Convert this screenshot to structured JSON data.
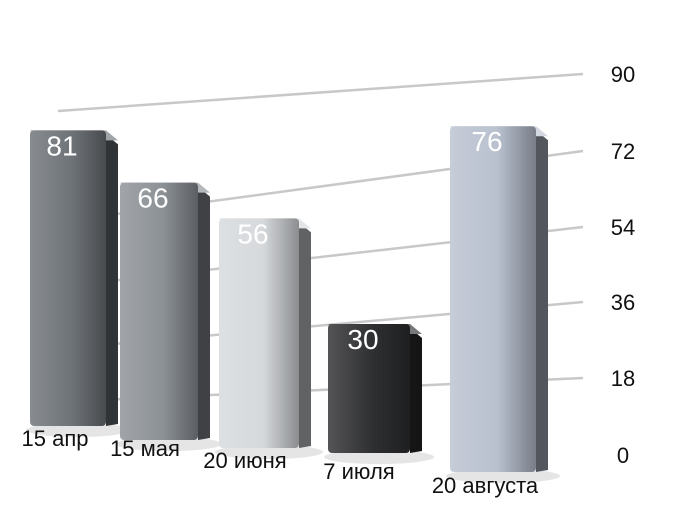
{
  "chart_data": {
    "type": "bar",
    "title": "",
    "xlabel": "",
    "ylabel": "",
    "categories": [
      "15 апр",
      "15 мая",
      "20 июня",
      "7 июля",
      "20 августа"
    ],
    "values": [
      81,
      66,
      56,
      30,
      76
    ],
    "ylim": [
      0,
      90
    ],
    "y_ticks": [
      "0",
      "18",
      "36",
      "54",
      "72",
      "90"
    ],
    "y_axis_side": "right",
    "grid": true,
    "style": "3d-perspective",
    "bar_colors": [
      "#6e7378",
      "#8c9196",
      "#d6d9dc",
      "#2e2f31",
      "#b9c1cf"
    ],
    "grid_color": "#c8c8c8"
  }
}
